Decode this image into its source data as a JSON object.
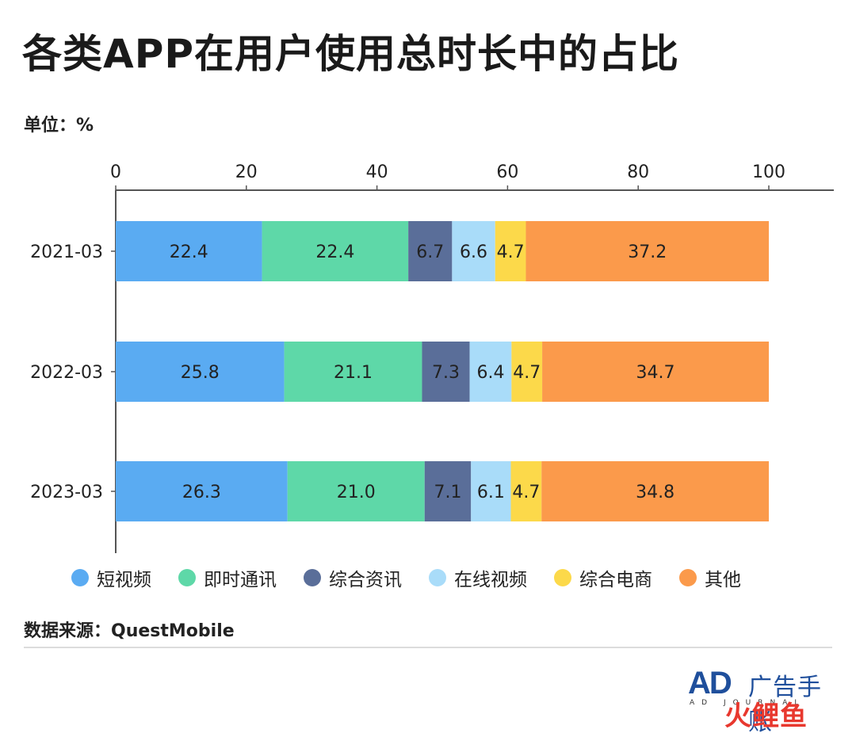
{
  "header": {
    "title": "各类APP在用户使用总时长中的占比",
    "unit": "单位：%"
  },
  "footer": {
    "source": "数据来源：QuestMobile"
  },
  "logo": {
    "mark": "AD",
    "name": "广告手账",
    "sub": "AD JOURNAL",
    "watermark": "火鲤鱼"
  },
  "chart_data": {
    "type": "bar",
    "orientation": "horizontal",
    "stacked": true,
    "categories": [
      "2021-03",
      "2022-03",
      "2023-03"
    ],
    "series": [
      {
        "name": "短视频",
        "color": "#5aabf2",
        "values": [
          22.4,
          25.8,
          26.3
        ]
      },
      {
        "name": "即时通讯",
        "color": "#5ed8a8",
        "values": [
          22.4,
          21.1,
          21.0
        ]
      },
      {
        "name": "综合资讯",
        "color": "#5a6e99",
        "values": [
          6.7,
          7.3,
          7.1
        ]
      },
      {
        "name": "在线视频",
        "color": "#a9dcf9",
        "values": [
          6.6,
          6.4,
          6.1
        ]
      },
      {
        "name": "综合电商",
        "color": "#fcd94a",
        "values": [
          4.7,
          4.7,
          4.7
        ]
      },
      {
        "name": "其他",
        "color": "#fb9a4b",
        "values": [
          37.2,
          34.7,
          34.8
        ]
      }
    ],
    "xlim": [
      0,
      110
    ],
    "xticks": [
      0,
      20,
      40,
      60,
      80,
      100
    ],
    "axis_position": "top",
    "grid": false,
    "legend_position": "bottom"
  }
}
